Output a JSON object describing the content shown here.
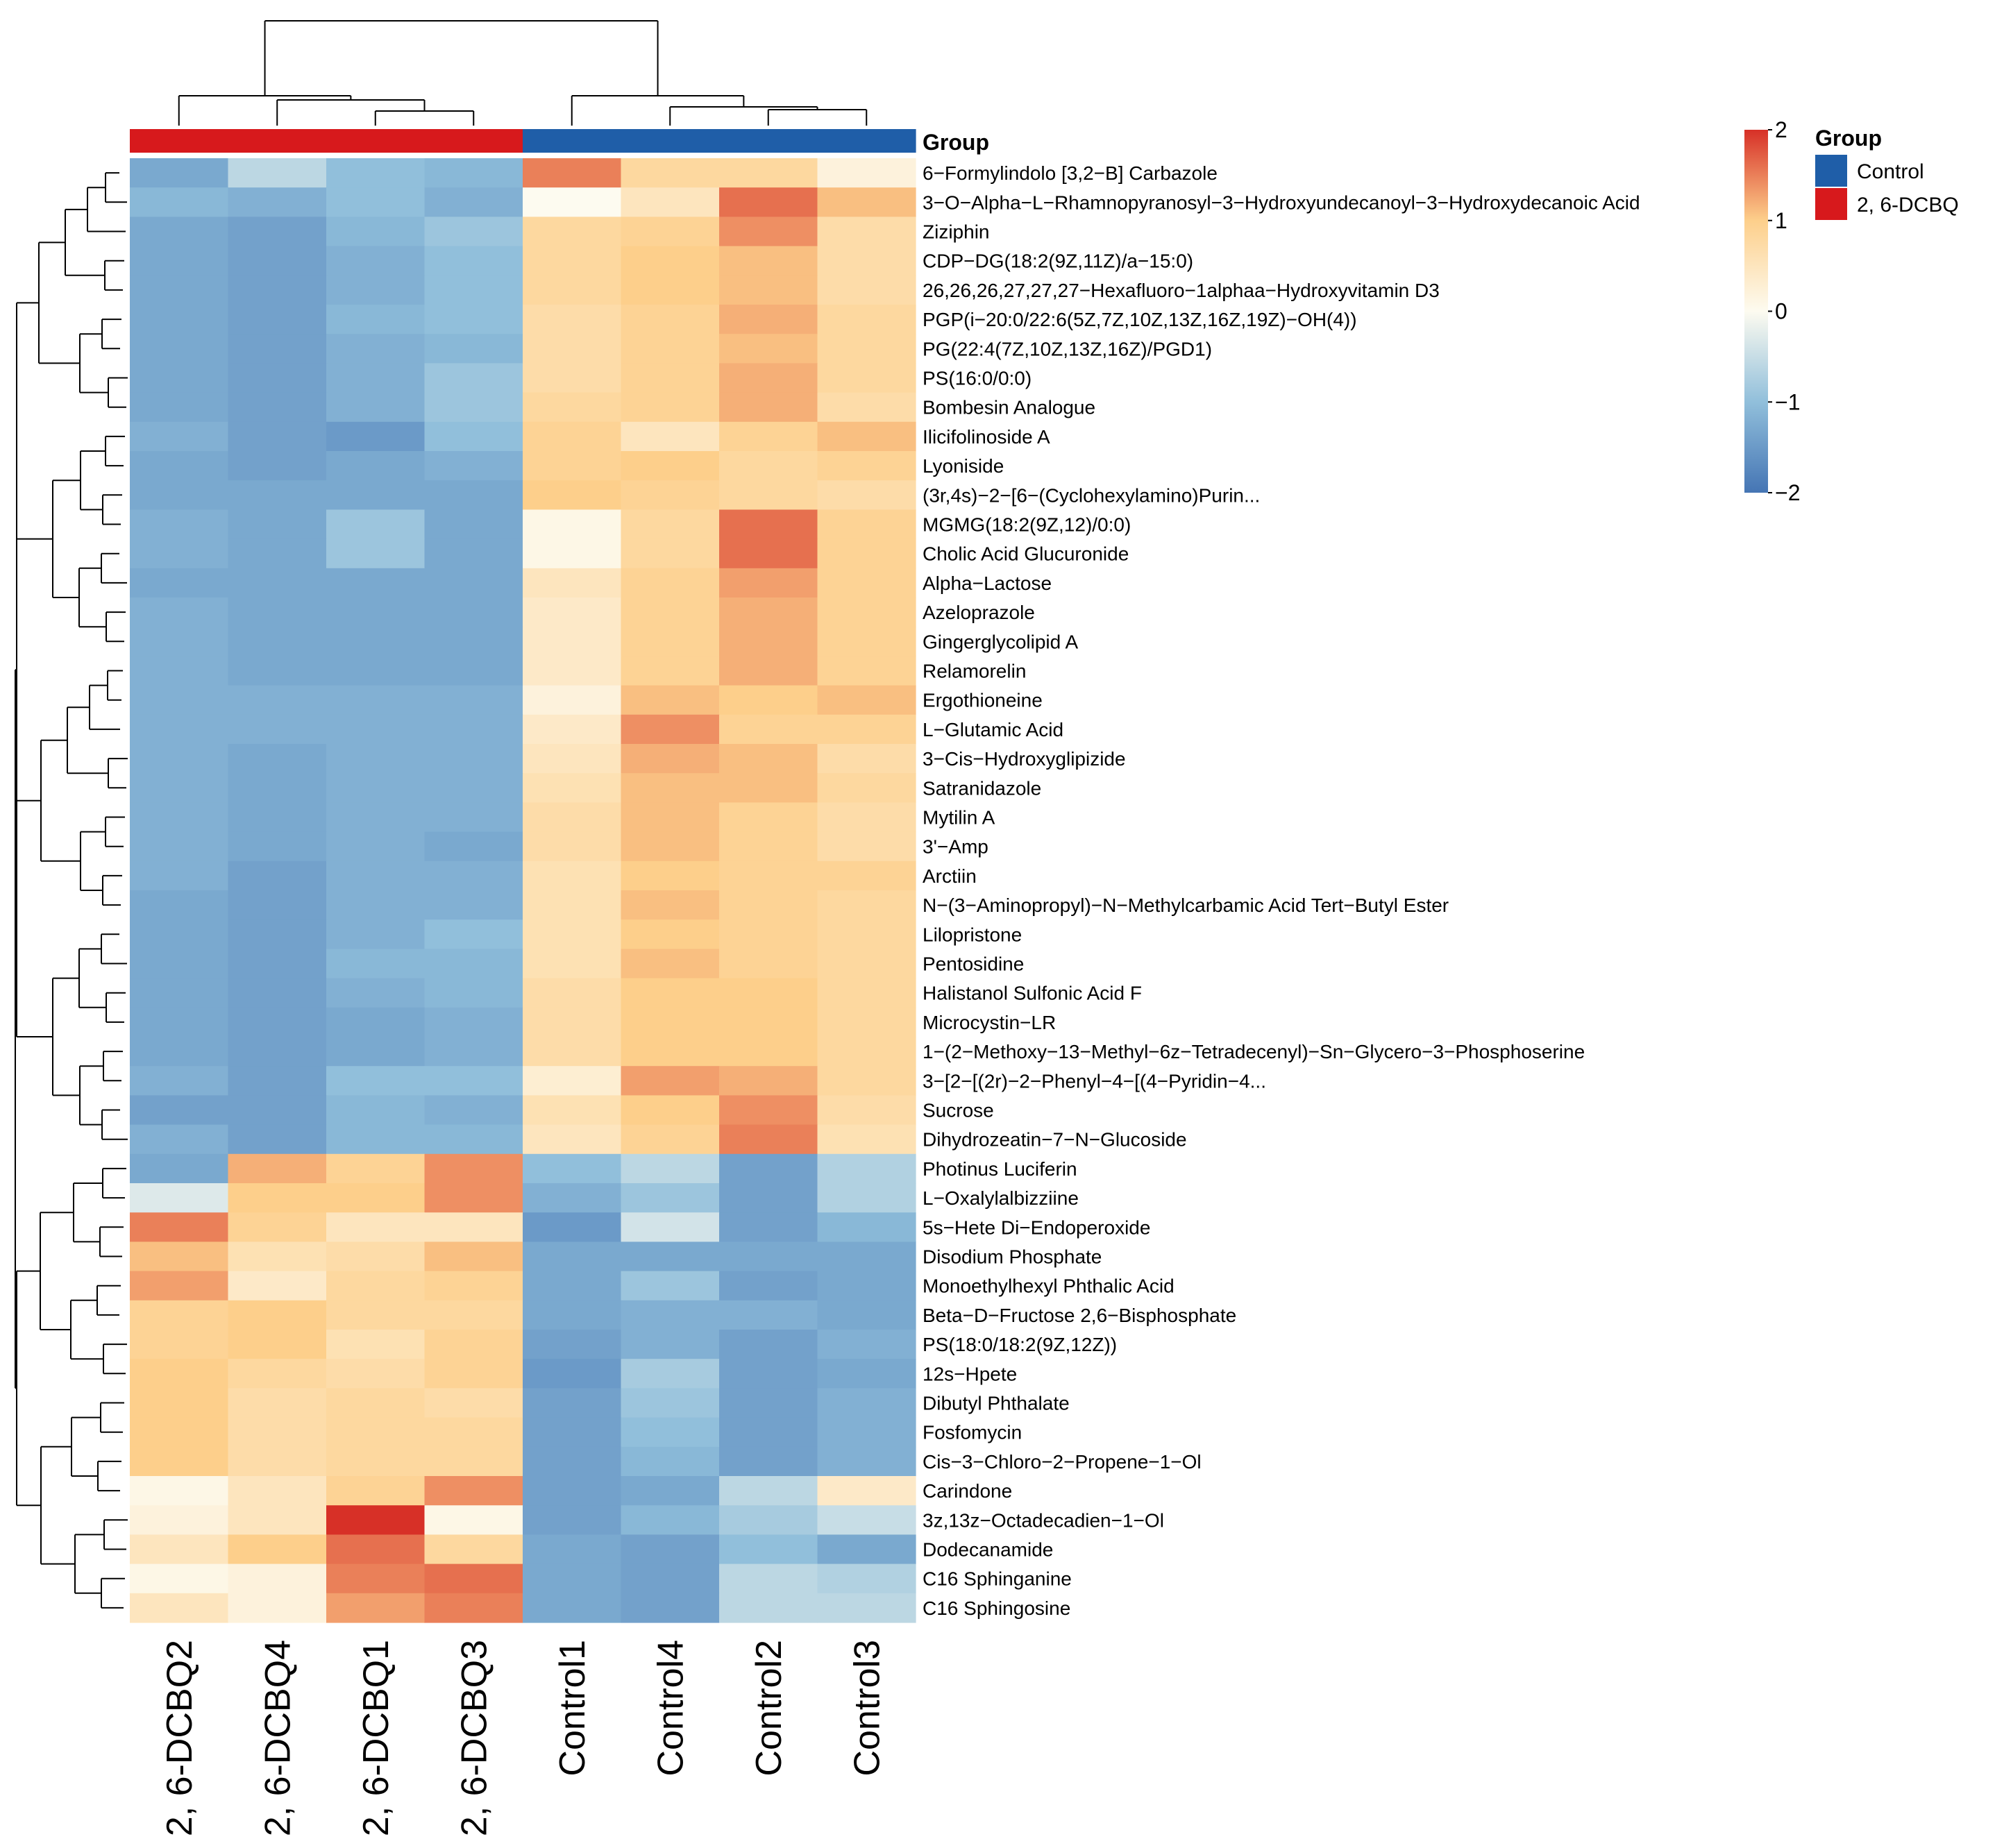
{
  "chart_data": {
    "type": "heatmap",
    "title": "",
    "columns": [
      "2, 6-DCBQ2",
      "2, 6-DCBQ4",
      "2, 6-DCBQ1",
      "2, 6-DCBQ3",
      "Control1",
      "Control4",
      "Control2",
      "Control3"
    ],
    "column_groups": [
      "2, 6-DCBQ",
      "2, 6-DCBQ",
      "2, 6-DCBQ",
      "2, 6-DCBQ",
      "Control",
      "Control",
      "Control",
      "Control"
    ],
    "rows": [
      "6−Formylindolo [3,2−B] Carbazole",
      "3−O−Alpha−L−Rhamnopyranosyl−3−Hydroxyundecanoyl−3−Hydroxydecanoic Acid",
      "Ziziphin",
      "CDP−DG(18:2(9Z,11Z)/a−15:0)",
      "26,26,26,27,27,27−Hexafluoro−1alphaa−Hydroxyvitamin D3",
      "PGP(i−20:0/22:6(5Z,7Z,10Z,13Z,16Z,19Z)−OH(4))",
      "PG(22:4(7Z,10Z,13Z,16Z)/PGD1)",
      "PS(16:0/0:0)",
      "Bombesin Analogue",
      "Ilicifolinoside A",
      "Lyoniside",
      "(3r,4s)−2−[6−(Cyclohexylamino)Purin...",
      "MGMG(18:2(9Z,12)/0:0)",
      "Cholic Acid Glucuronide",
      "Alpha−Lactose",
      "Azeloprazole",
      "Gingerglycolipid A",
      "Relamorelin",
      "Ergothioneine",
      "L−Glutamic Acid",
      "3−Cis−Hydroxyglipizide",
      "Satranidazole",
      "Mytilin A",
      "3'−Amp",
      "Arctiin",
      "N−(3−Aminopropyl)−N−Methylcarbamic Acid Tert−Butyl Ester",
      "Lilopristone",
      "Pentosidine",
      "Halistanol Sulfonic Acid F",
      "Microcystin−LR",
      "1−(2−Methoxy−13−Methyl−6z−Tetradecenyl)−Sn−Glycero−3−Phosphoserine",
      "3−[2−[(2r)−2−Phenyl−4−[(4−Pyridin−4...",
      "Sucrose",
      "Dihydrozeatin−7−N−Glucoside",
      "Photinus Luciferin",
      "L−Oxalylalbizziine",
      "5s−Hete Di−Endoperoxide",
      "Disodium Phosphate",
      "Monoethylhexyl Phthalic Acid",
      "Beta−D−Fructose 2,6−Bisphosphate",
      "PS(18:0/18:2(9Z,12Z))",
      "12s−Hpete",
      "Dibutyl Phthalate",
      "Fosfomycin",
      "Cis−3−Chloro−2−Propene−1−Ol",
      "Carindone",
      "3z,13z−Octadecadien−1−Ol",
      "Dodecanamide",
      "C16 Sphinganine",
      "C16 Sphingosine"
    ],
    "values": [
      [
        -1.3,
        -0.6,
        -1.0,
        -1.1,
        1.5,
        0.8,
        0.8,
        0.2
      ],
      [
        -1.1,
        -1.2,
        -1.0,
        -1.2,
        0.0,
        0.5,
        1.6,
        1.1
      ],
      [
        -1.3,
        -1.4,
        -1.1,
        -0.9,
        0.8,
        0.9,
        1.4,
        0.7
      ],
      [
        -1.3,
        -1.4,
        -1.2,
        -1.0,
        0.8,
        1.0,
        1.1,
        0.7
      ],
      [
        -1.3,
        -1.4,
        -1.2,
        -1.0,
        0.8,
        1.0,
        1.1,
        0.7
      ],
      [
        -1.3,
        -1.4,
        -1.1,
        -1.0,
        0.7,
        0.9,
        1.2,
        0.8
      ],
      [
        -1.3,
        -1.4,
        -1.2,
        -1.1,
        0.7,
        0.9,
        1.1,
        0.8
      ],
      [
        -1.3,
        -1.4,
        -1.2,
        -0.9,
        0.7,
        0.9,
        1.2,
        0.8
      ],
      [
        -1.3,
        -1.4,
        -1.2,
        -0.9,
        0.8,
        0.9,
        1.2,
        0.7
      ],
      [
        -1.2,
        -1.4,
        -1.5,
        -1.0,
        0.9,
        0.5,
        0.9,
        1.1
      ],
      [
        -1.3,
        -1.4,
        -1.3,
        -1.2,
        0.9,
        1.0,
        0.8,
        0.9
      ],
      [
        -1.3,
        -1.3,
        -1.3,
        -1.3,
        1.0,
        0.9,
        0.8,
        0.7
      ],
      [
        -1.2,
        -1.3,
        -0.9,
        -1.3,
        0.1,
        0.8,
        1.6,
        0.9
      ],
      [
        -1.2,
        -1.3,
        -0.9,
        -1.3,
        0.1,
        0.8,
        1.6,
        0.9
      ],
      [
        -1.3,
        -1.3,
        -1.3,
        -1.3,
        0.5,
        0.9,
        1.3,
        0.9
      ],
      [
        -1.2,
        -1.3,
        -1.3,
        -1.3,
        0.4,
        0.9,
        1.2,
        0.9
      ],
      [
        -1.2,
        -1.3,
        -1.3,
        -1.3,
        0.4,
        0.9,
        1.2,
        0.9
      ],
      [
        -1.2,
        -1.3,
        -1.3,
        -1.3,
        0.4,
        0.9,
        1.2,
        0.9
      ],
      [
        -1.2,
        -1.2,
        -1.2,
        -1.2,
        0.2,
        1.1,
        1.0,
        1.1
      ],
      [
        -1.2,
        -1.2,
        -1.2,
        -1.2,
        0.4,
        1.4,
        0.9,
        0.9
      ],
      [
        -1.2,
        -1.3,
        -1.2,
        -1.2,
        0.5,
        1.2,
        1.1,
        0.7
      ],
      [
        -1.2,
        -1.3,
        -1.2,
        -1.2,
        0.6,
        1.1,
        1.1,
        0.8
      ],
      [
        -1.2,
        -1.3,
        -1.2,
        -1.2,
        0.7,
        1.1,
        0.9,
        0.7
      ],
      [
        -1.2,
        -1.3,
        -1.2,
        -1.3,
        0.7,
        1.1,
        0.9,
        0.7
      ],
      [
        -1.2,
        -1.4,
        -1.2,
        -1.2,
        0.6,
        1.0,
        0.9,
        0.9
      ],
      [
        -1.3,
        -1.4,
        -1.2,
        -1.2,
        0.6,
        1.1,
        0.9,
        0.8
      ],
      [
        -1.3,
        -1.4,
        -1.2,
        -1.0,
        0.6,
        1.0,
        0.9,
        0.8
      ],
      [
        -1.3,
        -1.4,
        -1.1,
        -1.1,
        0.6,
        1.1,
        0.9,
        0.8
      ],
      [
        -1.3,
        -1.4,
        -1.2,
        -1.1,
        0.7,
        1.0,
        1.0,
        0.8
      ],
      [
        -1.3,
        -1.4,
        -1.3,
        -1.2,
        0.7,
        1.0,
        1.0,
        0.8
      ],
      [
        -1.3,
        -1.4,
        -1.3,
        -1.2,
        0.7,
        1.0,
        1.0,
        0.8
      ],
      [
        -1.2,
        -1.4,
        -1.0,
        -1.0,
        0.3,
        1.3,
        1.2,
        0.8
      ],
      [
        -1.4,
        -1.4,
        -1.1,
        -1.2,
        0.6,
        1.0,
        1.4,
        0.7
      ],
      [
        -1.2,
        -1.4,
        -1.1,
        -1.1,
        0.5,
        0.9,
        1.5,
        0.6
      ],
      [
        -1.3,
        1.2,
        0.9,
        1.4,
        -1.0,
        -0.6,
        -1.4,
        -0.7
      ],
      [
        -0.3,
        1.0,
        1.0,
        1.4,
        -1.2,
        -0.9,
        -1.4,
        -0.7
      ],
      [
        1.5,
        0.9,
        0.5,
        0.5,
        -1.5,
        -0.4,
        -1.4,
        -1.1
      ],
      [
        1.1,
        0.6,
        0.7,
        1.1,
        -1.3,
        -1.3,
        -1.3,
        -1.3
      ],
      [
        1.3,
        0.4,
        0.8,
        0.9,
        -1.3,
        -0.9,
        -1.4,
        -1.3
      ],
      [
        0.9,
        1.0,
        0.8,
        0.8,
        -1.3,
        -1.2,
        -1.2,
        -1.3
      ],
      [
        0.9,
        1.0,
        0.6,
        0.9,
        -1.4,
        -1.2,
        -1.4,
        -1.2
      ],
      [
        1.0,
        0.8,
        0.7,
        0.9,
        -1.5,
        -0.8,
        -1.4,
        -1.3
      ],
      [
        1.0,
        0.7,
        0.8,
        0.7,
        -1.4,
        -0.9,
        -1.4,
        -1.2
      ],
      [
        1.0,
        0.7,
        0.8,
        0.8,
        -1.4,
        -1.0,
        -1.4,
        -1.2
      ],
      [
        1.0,
        0.7,
        0.8,
        0.8,
        -1.4,
        -1.1,
        -1.4,
        -1.2
      ],
      [
        0.1,
        0.5,
        0.9,
        1.4,
        -1.4,
        -1.3,
        -0.6,
        0.4
      ],
      [
        0.2,
        0.5,
        2.1,
        0.1,
        -1.4,
        -1.1,
        -0.8,
        -0.5
      ],
      [
        0.5,
        1.0,
        1.6,
        0.8,
        -1.3,
        -1.4,
        -1.0,
        -1.3
      ],
      [
        0.1,
        0.2,
        1.5,
        1.6,
        -1.3,
        -1.4,
        -0.6,
        -0.7
      ],
      [
        0.5,
        0.2,
        1.3,
        1.5,
        -1.3,
        -1.4,
        -0.6,
        -0.6
      ]
    ],
    "color_scale": {
      "min": -2,
      "max": 2,
      "ticks": [
        "2",
        "1",
        "0",
        "−1",
        "−2"
      ],
      "colors": [
        "#4575b4",
        "#91bfdb",
        "#fdfbf0",
        "#fdcf8b",
        "#d73027"
      ]
    },
    "annotation": {
      "title": "Group",
      "legend_title": "Group",
      "legend_placement": "top-right",
      "levels": [
        {
          "label": "Control",
          "color": "#1f5ea8"
        },
        {
          "label": "2, 6-DCBQ",
          "color": "#d7191c"
        }
      ]
    }
  }
}
